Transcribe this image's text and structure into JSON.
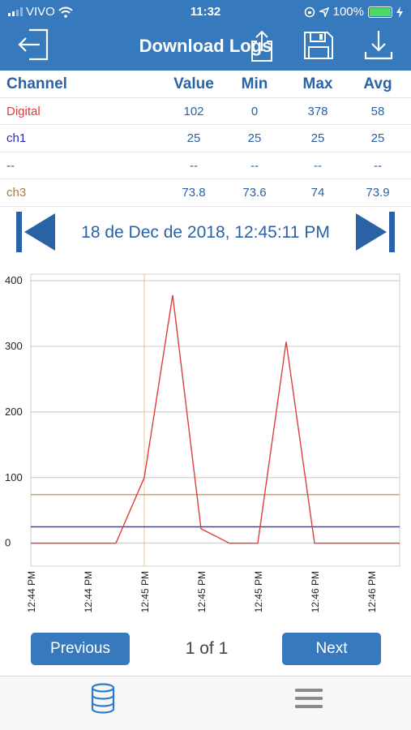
{
  "status_bar": {
    "carrier": "VIVO",
    "time": "11:32",
    "battery": "100%"
  },
  "header": {
    "title": "Download Logs"
  },
  "table": {
    "columns": [
      "Channel",
      "Value",
      "Min",
      "Max",
      "Avg"
    ],
    "rows": [
      {
        "channel": "Digital",
        "value": "102",
        "min": "0",
        "max": "378",
        "avg": "58",
        "color": "#e03b3b"
      },
      {
        "channel": "ch1",
        "value": "25",
        "min": "25",
        "max": "25",
        "avg": "25",
        "color": "#2c2cb5"
      },
      {
        "channel": "--",
        "value": "--",
        "min": "--",
        "max": "--",
        "avg": "--",
        "color": "#555555"
      },
      {
        "channel": "ch3",
        "value": "73.8",
        "min": "73.6",
        "max": "74",
        "avg": "73.9",
        "color": "#a87a3d"
      }
    ]
  },
  "date_nav": {
    "label": "18 de Dec de 2018, 12:45:11 PM"
  },
  "chart_data": {
    "type": "line",
    "y_ticks": [
      "400",
      "300",
      "200",
      "100",
      "0"
    ],
    "ylim": [
      -35,
      410
    ],
    "x_tick_labels": [
      "12:44 PM",
      "12:44 PM",
      "12:45 PM",
      "12:45 PM",
      "12:45 PM",
      "12:46 PM",
      "12:46 PM"
    ],
    "grid": true,
    "cursor_index": 4,
    "series": [
      {
        "color": "#d9403c",
        "values": [
          0,
          0,
          0,
          0,
          100,
          378,
          22,
          0,
          0,
          307,
          0,
          0,
          0,
          0
        ]
      },
      {
        "color": "#4040b0",
        "values": [
          25,
          25,
          25,
          25,
          25,
          25,
          25,
          25,
          25,
          25,
          25,
          25,
          25,
          25
        ]
      },
      {
        "color": "#c79a6a",
        "values": [
          74,
          74,
          74,
          74,
          74,
          74,
          74,
          74,
          74,
          74,
          74,
          74,
          74,
          74
        ]
      }
    ]
  },
  "footer": {
    "previous_label": "Previous",
    "page_label": "1 of 1",
    "next_label": "Next"
  },
  "tabbar": {
    "items": [
      "database-icon",
      "menu-icon"
    ]
  },
  "colors": {
    "header_bg": "#3779bd",
    "accent": "#2a62a6"
  }
}
